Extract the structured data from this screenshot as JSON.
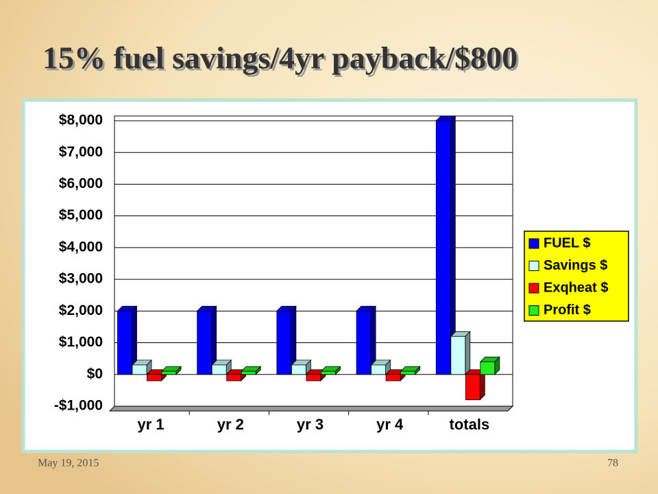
{
  "chart_data": {
    "type": "bar",
    "title": "15% fuel savings/4yr payback/$800",
    "categories": [
      "yr 1",
      "yr 2",
      "yr 3",
      "yr 4",
      "totals"
    ],
    "series": [
      {
        "name": "FUEL $",
        "color": "#0000ff",
        "values": [
          2000,
          2000,
          2000,
          2000,
          8000
        ]
      },
      {
        "name": "Savings $",
        "color": "#ccffff",
        "values": [
          300,
          300,
          300,
          300,
          1200
        ]
      },
      {
        "name": "Exqheat $",
        "color": "#ff0000",
        "values": [
          -200,
          -200,
          -200,
          -200,
          -800
        ]
      },
      {
        "name": "Profit $",
        "color": "#22ee22",
        "values": [
          100,
          100,
          100,
          100,
          400
        ]
      }
    ],
    "ylim": [
      -1000,
      8000
    ],
    "yticks": [
      {
        "value": -1000,
        "label": "-$1,000"
      },
      {
        "value": 0,
        "label": "$0"
      },
      {
        "value": 1000,
        "label": "$1,000"
      },
      {
        "value": 2000,
        "label": "$2,000"
      },
      {
        "value": 3000,
        "label": "$3,000"
      },
      {
        "value": 4000,
        "label": "$4,000"
      },
      {
        "value": 5000,
        "label": "$5,000"
      },
      {
        "value": 6000,
        "label": "$6,000"
      },
      {
        "value": 7000,
        "label": "$7,000"
      },
      {
        "value": 8000,
        "label": "$8,000"
      }
    ],
    "grid": true,
    "legend": "right"
  },
  "footer": {
    "date": "May 19, 2015",
    "page": "78"
  }
}
